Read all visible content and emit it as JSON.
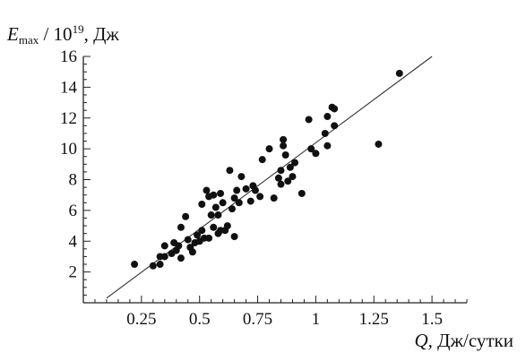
{
  "chart_data": {
    "type": "scatter",
    "title": "",
    "ylabel": {
      "symbol": "E",
      "subscript": "max",
      "divider": " / 10",
      "exponent": "19",
      "unit": ", Дж"
    },
    "xlabel": {
      "symbol": "Q",
      "unit": ", Дж/сутки"
    },
    "xlim": [
      0,
      1.65
    ],
    "ylim": [
      0,
      16
    ],
    "x_ticks": [
      {
        "value": 0.25,
        "label": "0.25"
      },
      {
        "value": 0.5,
        "label": "0.5"
      },
      {
        "value": 0.75,
        "label": "0.75"
      },
      {
        "value": 1.0,
        "label": "1"
      },
      {
        "value": 1.25,
        "label": "1.25"
      },
      {
        "value": 1.5,
        "label": "1.5"
      }
    ],
    "y_ticks": [
      {
        "value": 2,
        "label": "2"
      },
      {
        "value": 4,
        "label": "4"
      },
      {
        "value": 6,
        "label": "6"
      },
      {
        "value": 8,
        "label": "8"
      },
      {
        "value": 10,
        "label": "10"
      },
      {
        "value": 12,
        "label": "12"
      },
      {
        "value": 14,
        "label": "14"
      },
      {
        "value": 16,
        "label": "16"
      }
    ],
    "grid": false,
    "legend": "none",
    "fit_line": {
      "x": [
        0.1,
        1.5
      ],
      "y": [
        0.3,
        16.0
      ]
    },
    "points": [
      {
        "x": 0.22,
        "y": 2.5
      },
      {
        "x": 0.3,
        "y": 2.4
      },
      {
        "x": 0.33,
        "y": 2.5
      },
      {
        "x": 0.33,
        "y": 3.0
      },
      {
        "x": 0.35,
        "y": 3.0
      },
      {
        "x": 0.35,
        "y": 3.7
      },
      {
        "x": 0.38,
        "y": 3.2
      },
      {
        "x": 0.39,
        "y": 3.9
      },
      {
        "x": 0.4,
        "y": 3.4
      },
      {
        "x": 0.41,
        "y": 3.7
      },
      {
        "x": 0.42,
        "y": 2.9
      },
      {
        "x": 0.42,
        "y": 4.9
      },
      {
        "x": 0.44,
        "y": 5.6
      },
      {
        "x": 0.45,
        "y": 4.1
      },
      {
        "x": 0.46,
        "y": 3.6
      },
      {
        "x": 0.47,
        "y": 3.3
      },
      {
        "x": 0.48,
        "y": 3.9
      },
      {
        "x": 0.49,
        "y": 4.4
      },
      {
        "x": 0.5,
        "y": 4.0
      },
      {
        "x": 0.51,
        "y": 4.7
      },
      {
        "x": 0.51,
        "y": 6.4
      },
      {
        "x": 0.52,
        "y": 4.2
      },
      {
        "x": 0.53,
        "y": 7.3
      },
      {
        "x": 0.54,
        "y": 6.9
      },
      {
        "x": 0.54,
        "y": 4.2
      },
      {
        "x": 0.55,
        "y": 5.7
      },
      {
        "x": 0.56,
        "y": 4.9
      },
      {
        "x": 0.56,
        "y": 7.0
      },
      {
        "x": 0.57,
        "y": 6.2
      },
      {
        "x": 0.58,
        "y": 5.7
      },
      {
        "x": 0.58,
        "y": 4.5
      },
      {
        "x": 0.59,
        "y": 7.1
      },
      {
        "x": 0.59,
        "y": 4.7
      },
      {
        "x": 0.6,
        "y": 6.5
      },
      {
        "x": 0.61,
        "y": 4.7
      },
      {
        "x": 0.62,
        "y": 5.0
      },
      {
        "x": 0.63,
        "y": 8.6
      },
      {
        "x": 0.64,
        "y": 6.1
      },
      {
        "x": 0.65,
        "y": 4.3
      },
      {
        "x": 0.65,
        "y": 6.8
      },
      {
        "x": 0.66,
        "y": 7.3
      },
      {
        "x": 0.67,
        "y": 6.5
      },
      {
        "x": 0.68,
        "y": 8.2
      },
      {
        "x": 0.7,
        "y": 7.4
      },
      {
        "x": 0.72,
        "y": 6.6
      },
      {
        "x": 0.73,
        "y": 7.6
      },
      {
        "x": 0.74,
        "y": 7.3
      },
      {
        "x": 0.76,
        "y": 6.9
      },
      {
        "x": 0.77,
        "y": 9.3
      },
      {
        "x": 0.8,
        "y": 10.0
      },
      {
        "x": 0.82,
        "y": 6.8
      },
      {
        "x": 0.84,
        "y": 8.1
      },
      {
        "x": 0.85,
        "y": 7.7
      },
      {
        "x": 0.85,
        "y": 8.6
      },
      {
        "x": 0.86,
        "y": 10.2
      },
      {
        "x": 0.86,
        "y": 10.6
      },
      {
        "x": 0.87,
        "y": 9.6
      },
      {
        "x": 0.88,
        "y": 7.9
      },
      {
        "x": 0.89,
        "y": 8.8
      },
      {
        "x": 0.9,
        "y": 8.2
      },
      {
        "x": 0.91,
        "y": 9.1
      },
      {
        "x": 0.94,
        "y": 7.1
      },
      {
        "x": 0.97,
        "y": 11.9
      },
      {
        "x": 0.98,
        "y": 10.0
      },
      {
        "x": 1.0,
        "y": 9.7
      },
      {
        "x": 1.04,
        "y": 11.0
      },
      {
        "x": 1.05,
        "y": 12.1
      },
      {
        "x": 1.05,
        "y": 10.2
      },
      {
        "x": 1.07,
        "y": 12.7
      },
      {
        "x": 1.08,
        "y": 12.6
      },
      {
        "x": 1.08,
        "y": 11.5
      },
      {
        "x": 1.27,
        "y": 10.3
      },
      {
        "x": 1.36,
        "y": 14.9
      }
    ]
  }
}
